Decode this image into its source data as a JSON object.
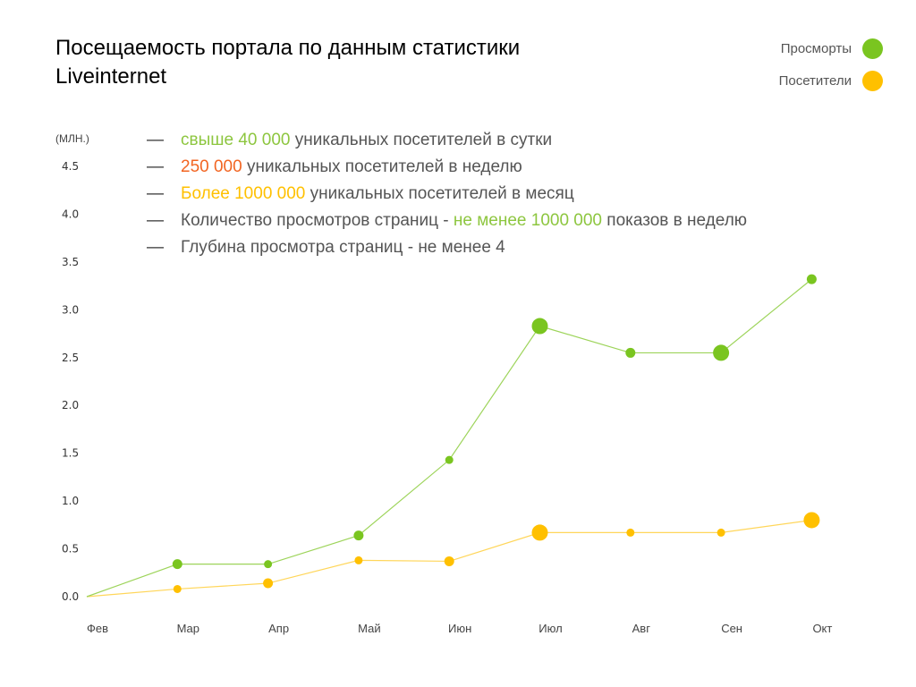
{
  "title": "Посещаемость портала по данным статистики Liveinternet",
  "legend": [
    {
      "label": "Просморты",
      "color": "#7ac520"
    },
    {
      "label": "Посетители",
      "color": "#ffc000"
    }
  ],
  "unit_label": "(МЛН.)",
  "bullets": [
    {
      "dash": "—",
      "parts": [
        {
          "text": "свыше 40 000",
          "color": "#8dc63f"
        },
        {
          "text": " уникальных посетителей в сутки",
          "color": "#555555"
        }
      ]
    },
    {
      "dash": "—",
      "parts": [
        {
          "text": "250 000",
          "color": "#f26522"
        },
        {
          "text": " уникальных посетителей в неделю",
          "color": "#555555"
        }
      ]
    },
    {
      "dash": "—",
      "parts": [
        {
          "text": "Более 1000 000",
          "color": "#ffc000"
        },
        {
          "text": " уникальных посетителей в месяц",
          "color": "#555555"
        }
      ]
    },
    {
      "dash": "—",
      "parts": [
        {
          "text": "Количество просмотров страниц - ",
          "color": "#555555"
        },
        {
          "text": "не менее 1000 000",
          "color": "#8dc63f"
        },
        {
          "text": " показов в неделю",
          "color": "#555555"
        }
      ]
    },
    {
      "dash": "—",
      "parts": [
        {
          "text": "Глубина просмотра страниц - не менее 4",
          "color": "#555555"
        }
      ]
    }
  ],
  "chart_data": {
    "type": "line",
    "categories": [
      "Фев",
      "Мар",
      "Апр",
      "Май",
      "Июн",
      "Июл",
      "Авг",
      "Сен",
      "Окт"
    ],
    "yticks": [
      "0.0",
      "0.5",
      "1.0",
      "1.5",
      "2.0",
      "2.5",
      "3.0",
      "3.5",
      "4.0",
      "4.5"
    ],
    "ylim": [
      0,
      4.5
    ],
    "ylabel": "(МЛН.)",
    "grid": false,
    "legend_position": "top-right",
    "series": [
      {
        "name": "Просморты",
        "color": "#7ac520",
        "line_color": "#9dd45a",
        "values": [
          0.0,
          0.34,
          0.34,
          0.64,
          1.43,
          2.83,
          2.55,
          2.55,
          3.32
        ],
        "marker_sizes": [
          "none",
          "medium",
          "small",
          "medium",
          "small",
          "large",
          "medium",
          "large",
          "medium"
        ]
      },
      {
        "name": "Посетители",
        "color": "#ffc000",
        "line_color": "#ffd65a",
        "values": [
          0.0,
          0.08,
          0.14,
          0.38,
          0.37,
          0.67,
          0.67,
          0.67,
          0.8
        ],
        "marker_sizes": [
          "none",
          "small",
          "medium",
          "small",
          "medium",
          "large",
          "small",
          "small",
          "large"
        ]
      }
    ]
  }
}
